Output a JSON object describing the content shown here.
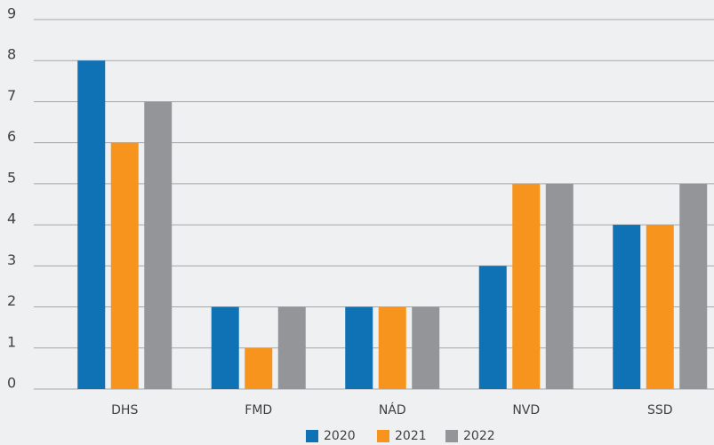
{
  "chart_data": {
    "type": "bar",
    "categories": [
      "DHS",
      "FMD",
      "NÁD",
      "NVD",
      "SSD"
    ],
    "series": [
      {
        "name": "2020",
        "color": "#0e72b5",
        "values": [
          8,
          2,
          2,
          3,
          4
        ]
      },
      {
        "name": "2021",
        "color": "#f7941d",
        "values": [
          6,
          1,
          2,
          5,
          4
        ]
      },
      {
        "name": "2022",
        "color": "#939598",
        "values": [
          7,
          2,
          2,
          5,
          5
        ]
      }
    ],
    "ylim": [
      0,
      9
    ],
    "yticks": [
      0,
      1,
      2,
      3,
      4,
      5,
      6,
      7,
      8,
      9
    ],
    "grid": true,
    "legend": "bottom"
  }
}
